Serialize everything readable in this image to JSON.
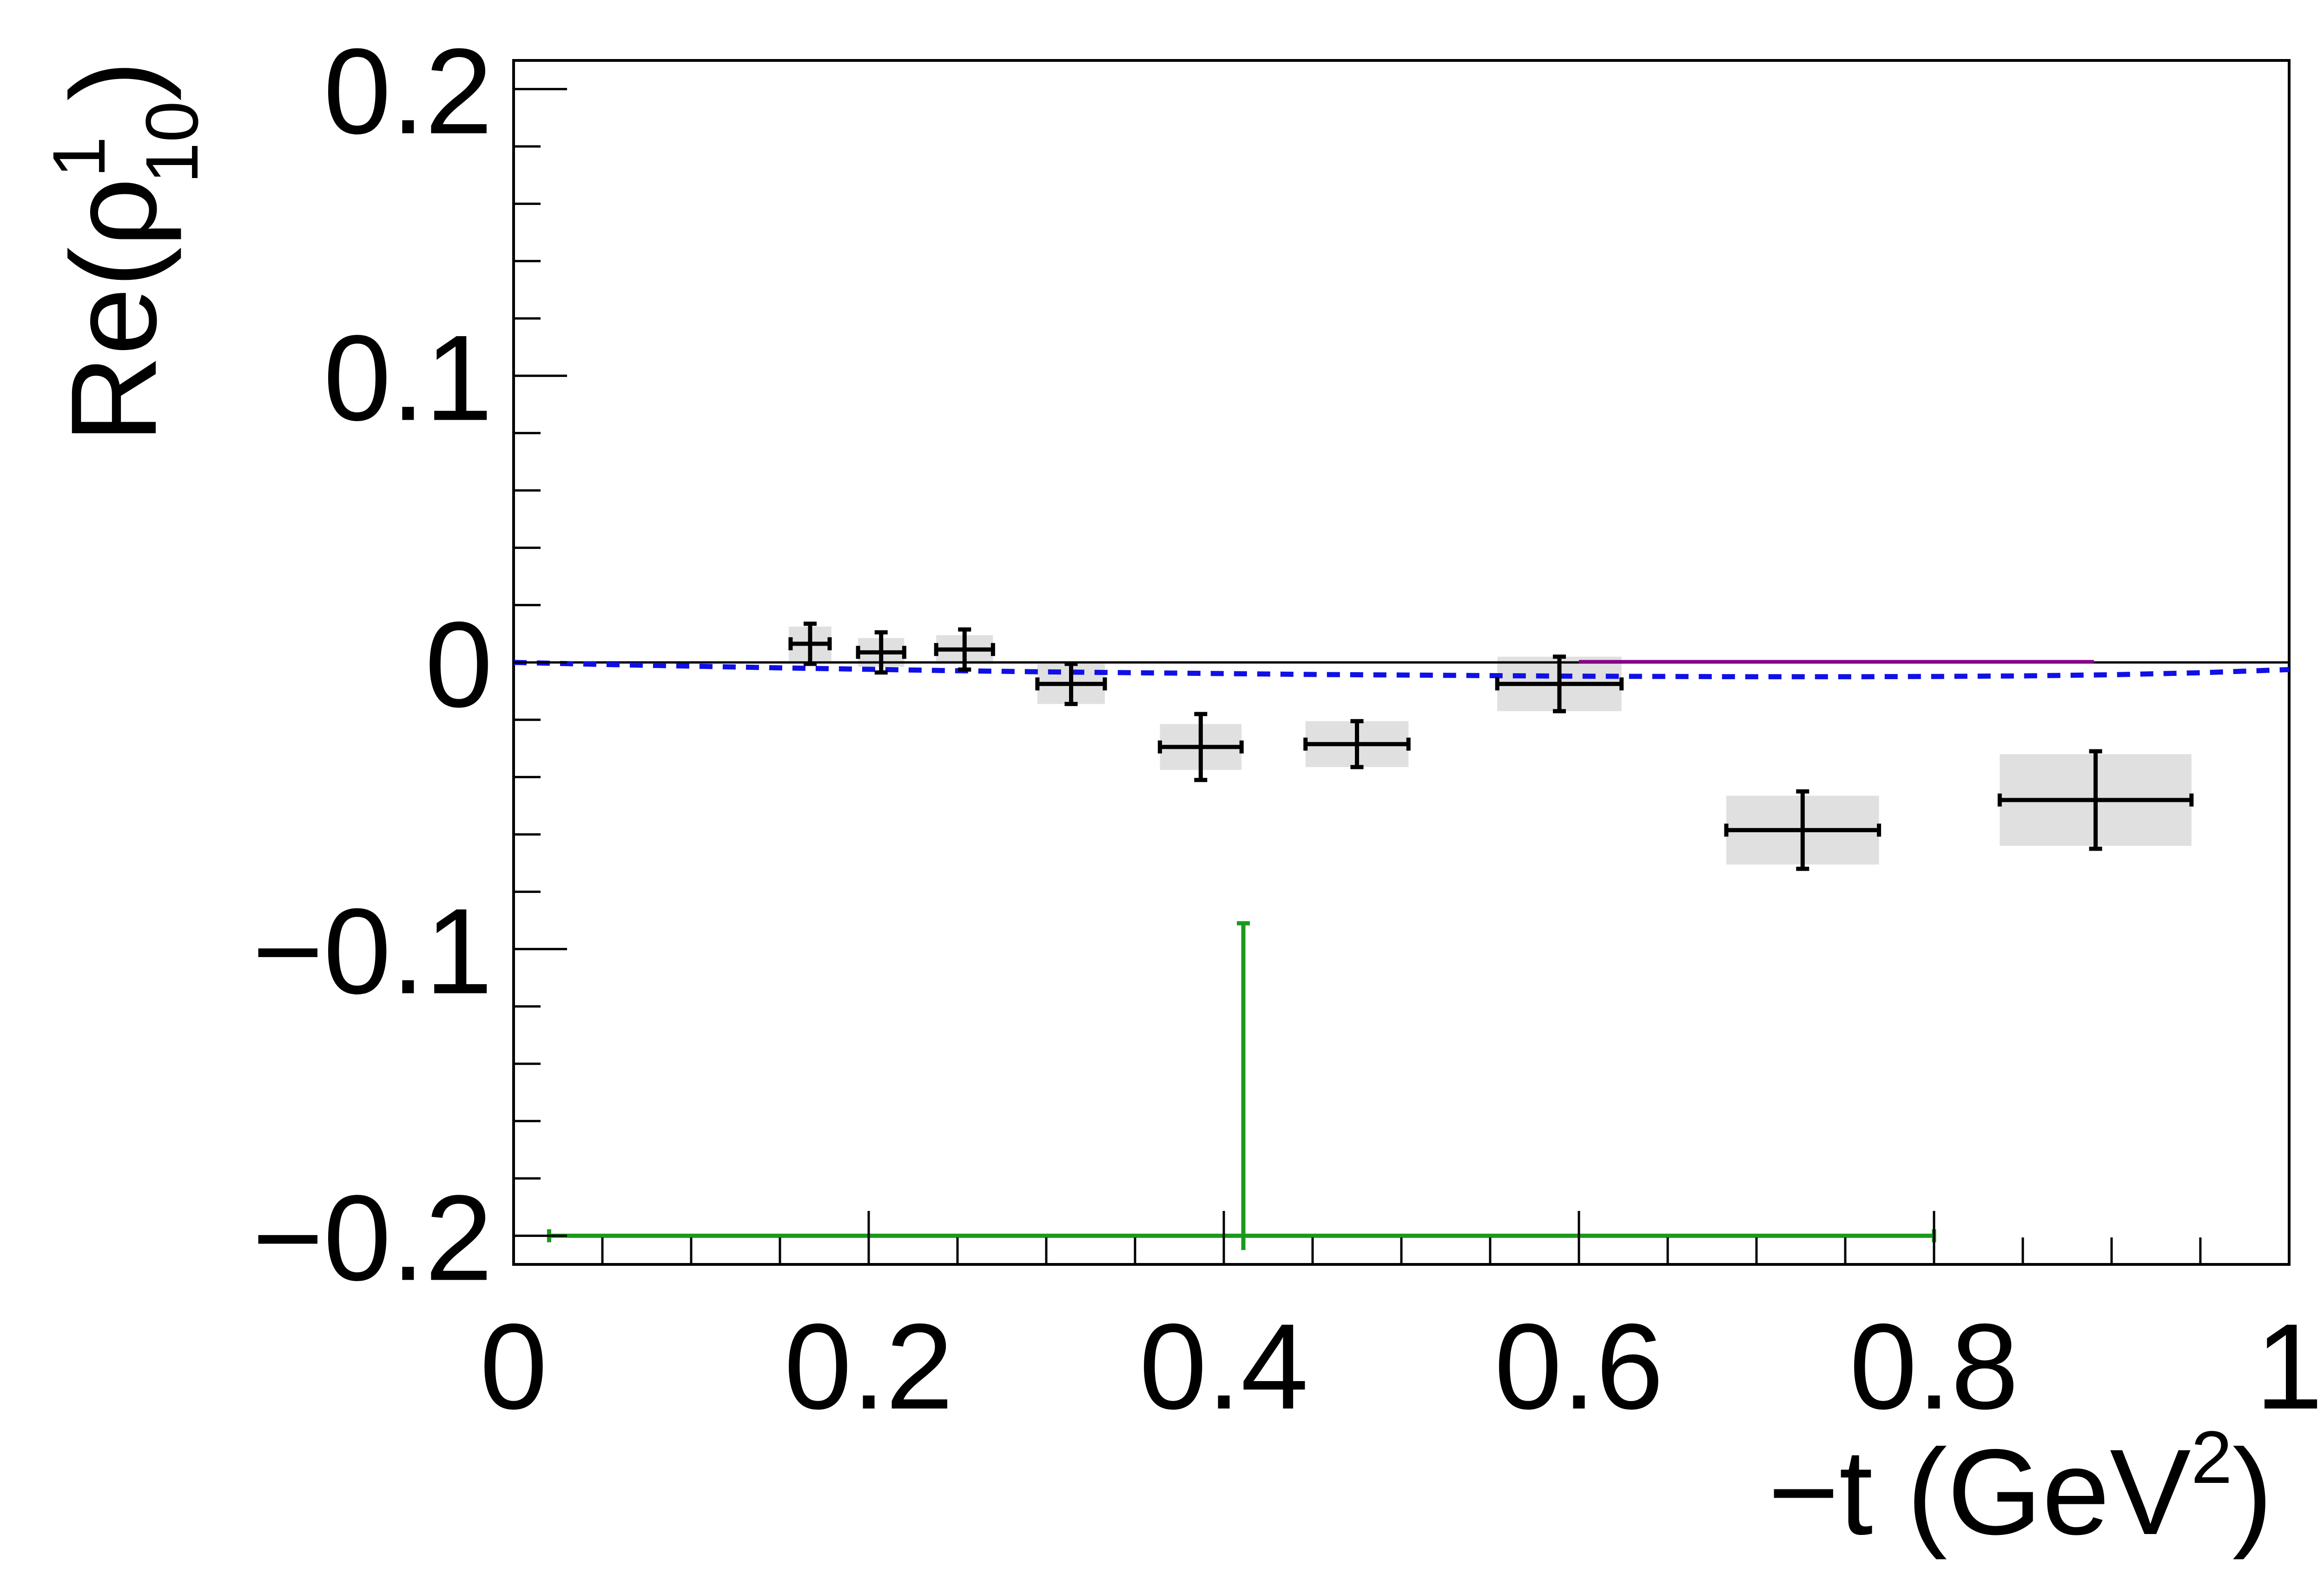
{
  "chart_data": {
    "type": "scatter",
    "title": "",
    "xlabel": {
      "base": "−t (GeV",
      "superscript": "2",
      "close": ")"
    },
    "ylabel": {
      "base": "Re(ρ",
      "superscript": "1",
      "subscript": "10",
      "close": ")"
    },
    "xlim": [
      0,
      1
    ],
    "ylim": [
      -0.21,
      0.21
    ],
    "x_ticks": [
      {
        "value": 0,
        "label": "0"
      },
      {
        "value": 0.2,
        "label": "0.2"
      },
      {
        "value": 0.4,
        "label": "0.4"
      },
      {
        "value": 0.6,
        "label": "0.6"
      },
      {
        "value": 0.8,
        "label": "0.8"
      },
      {
        "value": 1,
        "label": "1"
      }
    ],
    "y_ticks": [
      {
        "value": -0.2,
        "label": "−0.2"
      },
      {
        "value": -0.1,
        "label": "−0.1"
      },
      {
        "value": 0,
        "label": "0"
      },
      {
        "value": 0.1,
        "label": "0.1"
      },
      {
        "value": 0.2,
        "label": "0.2"
      }
    ],
    "x_minor_step": 0.05,
    "y_minor_step": 0.02,
    "grid": false,
    "legend": "none",
    "zero_line": true,
    "series": [
      {
        "kind": "points",
        "color": "#000000",
        "band_color": "#e0e0e0",
        "points": [
          {
            "x": 0.167,
            "y": 0.0065,
            "xerr": 0.011,
            "yerr": 0.007,
            "syst_x": 0.012,
            "syst_y": 0.006
          },
          {
            "x": 0.207,
            "y": 0.0035,
            "xerr": 0.013,
            "yerr": 0.007,
            "syst_x": 0.013,
            "syst_y": 0.005
          },
          {
            "x": 0.254,
            "y": 0.0045,
            "xerr": 0.016,
            "yerr": 0.007,
            "syst_x": 0.016,
            "syst_y": 0.005
          },
          {
            "x": 0.314,
            "y": -0.0075,
            "xerr": 0.019,
            "yerr": 0.007,
            "syst_x": 0.019,
            "syst_y": 0.007
          },
          {
            "x": 0.387,
            "y": -0.0295,
            "xerr": 0.023,
            "yerr": 0.0115,
            "syst_x": 0.023,
            "syst_y": 0.008
          },
          {
            "x": 0.475,
            "y": -0.0285,
            "xerr": 0.029,
            "yerr": 0.008,
            "syst_x": 0.029,
            "syst_y": 0.008
          },
          {
            "x": 0.589,
            "y": -0.0075,
            "xerr": 0.035,
            "yerr": 0.0095,
            "syst_x": 0.035,
            "syst_y": 0.0095
          },
          {
            "x": 0.726,
            "y": -0.0585,
            "xerr": 0.043,
            "yerr": 0.0135,
            "syst_x": 0.043,
            "syst_y": 0.012
          },
          {
            "x": 0.891,
            "y": -0.048,
            "xerr": 0.054,
            "yerr": 0.017,
            "syst_x": 0.054,
            "syst_y": 0.016
          }
        ]
      },
      {
        "kind": "point",
        "color": "#1a9a1a",
        "points": [
          {
            "x": 0.411,
            "y": -0.2,
            "xerr_low": 0.391,
            "xerr_high": 0.389,
            "yerr_high": 0.109,
            "yerr_low": 0.005
          }
        ]
      },
      {
        "kind": "curve",
        "style": "dashed",
        "color": "#1010e6",
        "x": [
          0,
          0.05,
          0.1,
          0.15,
          0.2,
          0.25,
          0.3,
          0.35,
          0.4,
          0.45,
          0.5,
          0.55,
          0.6,
          0.65,
          0.7,
          0.75,
          0.8,
          0.85,
          0.9,
          0.95,
          1.0
        ],
        "y": [
          0,
          -0.0007,
          -0.0013,
          -0.0019,
          -0.0024,
          -0.0029,
          -0.0033,
          -0.0036,
          -0.0039,
          -0.0042,
          -0.0044,
          -0.0046,
          -0.0048,
          -0.0049,
          -0.005,
          -0.005,
          -0.0049,
          -0.0047,
          -0.0043,
          -0.0036,
          -0.0025
        ]
      },
      {
        "kind": "curve",
        "style": "solid",
        "color": "#8a008a",
        "x": [
          0.6,
          0.89
        ],
        "y": [
          0.0003,
          0.0003
        ]
      }
    ]
  }
}
